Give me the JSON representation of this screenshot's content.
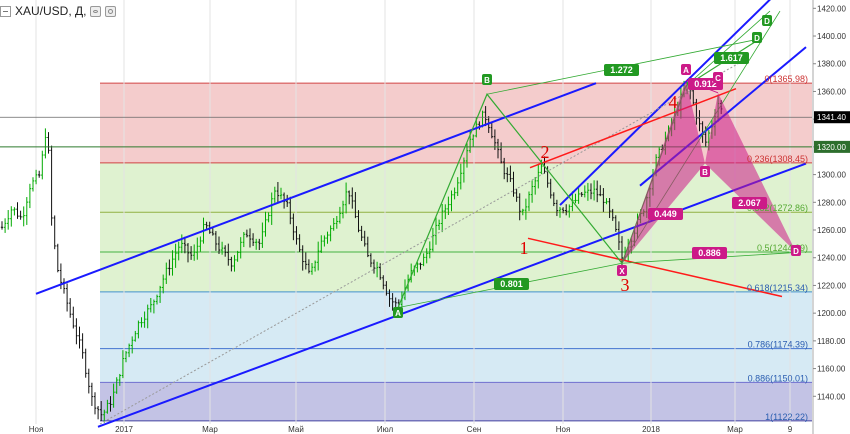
{
  "header": {
    "symbol": "XAU/USD, Д,",
    "icons": [
      "collapse-icon",
      "settings-icon",
      "visibility-icon"
    ]
  },
  "colors": {
    "up_candle": "#00aa00",
    "down_candle": "#111111",
    "channel": "#1a1aff",
    "red_lines": "#ff1a1a",
    "pattern_green": "#33aa33",
    "harmonic_magenta": "#cc1a88",
    "fib_red_zone": "#f2c3c3",
    "fib_green_zone": "#d9f0c8",
    "fib_blue_zone": "#cfe6f2",
    "fib_gray_zone": "#dddddd",
    "fib_purple_zone": "#b8b8e0",
    "price_label_bg": "#000000"
  },
  "chart_data": {
    "type": "candlestick",
    "instrument": "XAU/USD",
    "timeframe": "Д",
    "x_ticks": [
      "Ноя",
      "2017",
      "Мар",
      "Май",
      "Июл",
      "Сен",
      "Ноя",
      "2018",
      "Мар",
      "9"
    ],
    "y_ticks": [
      "1420.00",
      "1400.00",
      "1380.00",
      "1360.00",
      "1340.00",
      "1320.00",
      "1300.00",
      "1280.00",
      "1260.00",
      "1240.00",
      "1220.00",
      "1200.00",
      "1180.00",
      "1160.00",
      "1140.00"
    ],
    "ylim": [
      1120,
      1426
    ],
    "current_price_label": "1341.40",
    "level_label": "1320.00",
    "fibonacci_levels": [
      {
        "ratio": "0",
        "price": 1365.98,
        "label": "0(1365.98)"
      },
      {
        "ratio": "0.236",
        "price": 1308.45,
        "label": "0.236(1308.45)"
      },
      {
        "ratio": "0.382",
        "price": 1272.86,
        "label": "0.382(1272.86)"
      },
      {
        "ratio": "0.5",
        "price": 1244.09,
        "label": "0.5(1244.09)"
      },
      {
        "ratio": "0.618",
        "price": 1215.34,
        "label": "0.618(1215.34)"
      },
      {
        "ratio": "0.786",
        "price": 1174.39,
        "label": "0.786(1174.39)"
      },
      {
        "ratio": "0.886",
        "price": 1150.01,
        "label": "0.886(1150.01)"
      },
      {
        "ratio": "1",
        "price": 1122.22,
        "label": "1(1122.22)"
      }
    ],
    "harmonic_points": {
      "A": "A",
      "B": "B",
      "C": "C",
      "D": "D",
      "X": "X"
    },
    "pattern_labels": {
      "ratio_1272": "1.272",
      "ratio_1617": "1.617",
      "ratio_0912": "0.912",
      "ratio_2067": "2.067",
      "ratio_0449": "0.449",
      "ratio_0886": "0.886",
      "ratio_0801": "0.801"
    },
    "wave_labels": [
      "1",
      "2",
      "3",
      "4"
    ]
  }
}
